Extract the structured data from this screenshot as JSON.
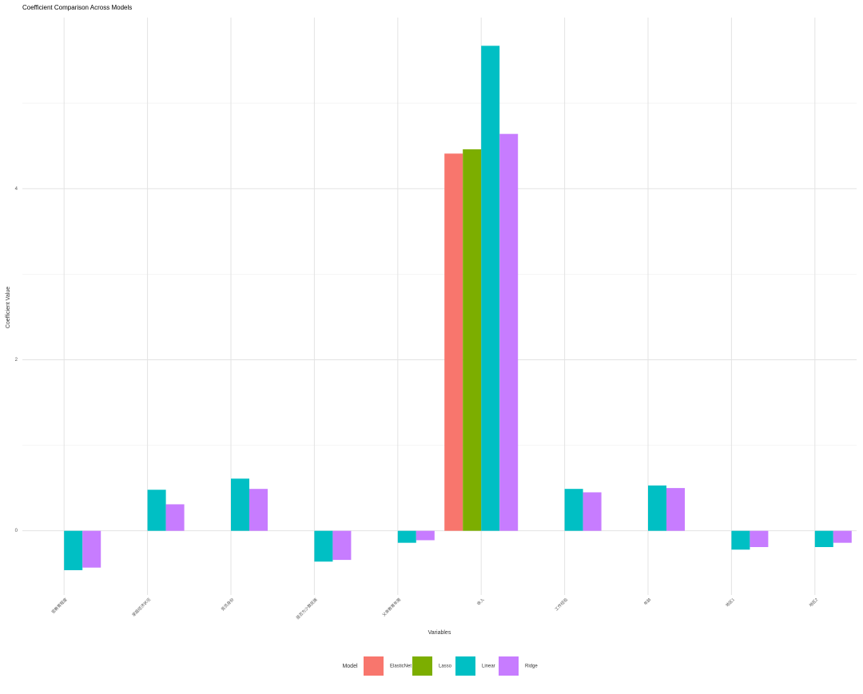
{
  "chart_data": {
    "type": "bar",
    "title": "Coefficient Comparison Across Models",
    "x_label": "Variables",
    "y_label": "Coefficient Value",
    "legend_title": "Model",
    "categories": [
      "受教育程度",
      "家庭经济状况",
      "党员身份",
      "是否为少数民族",
      "父亲教育年限",
      "收入",
      "工作经验",
      "年龄",
      "地区1",
      "地区2"
    ],
    "series": [
      {
        "name": "ElasticNet",
        "color": "#F8766D",
        "values": [
          0,
          0,
          0,
          0,
          0,
          4.41,
          0,
          0,
          0,
          0
        ]
      },
      {
        "name": "Lasso",
        "color": "#7CAE00",
        "values": [
          0,
          0,
          0,
          0,
          0,
          4.46,
          0,
          0,
          0,
          0
        ]
      },
      {
        "name": "Linear",
        "color": "#00BFC4",
        "values": [
          -0.46,
          0.48,
          0.61,
          -0.36,
          -0.14,
          5.67,
          0.49,
          0.53,
          -0.22,
          -0.19
        ]
      },
      {
        "name": "Ridge",
        "color": "#C77CFF",
        "values": [
          -0.43,
          0.31,
          0.49,
          -0.34,
          -0.11,
          4.64,
          0.45,
          0.5,
          -0.19,
          -0.14
        ]
      }
    ],
    "ylim": [
      -0.75,
      6.0
    ],
    "yticks": [
      0,
      2,
      4
    ],
    "yminor": [
      1,
      3,
      5
    ],
    "grid": true,
    "legend": "bottom"
  }
}
